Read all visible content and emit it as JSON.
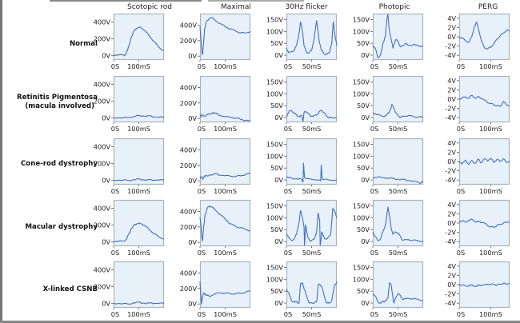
{
  "figure": {
    "columns": [
      "Scotopic rod",
      "Maximal",
      "30Hz flicker",
      "Photopic",
      "PERG"
    ],
    "rows": [
      {
        "label_lines": [
          "Normal"
        ]
      },
      {
        "label_lines": [
          "Retinitis Pigmentosa",
          "(macula involved)"
        ]
      },
      {
        "label_lines": [
          "Cone-rod dystrophy"
        ]
      },
      {
        "label_lines": [
          "Macular dystrophy"
        ]
      },
      {
        "label_lines": [
          "X-linked CSNB"
        ]
      }
    ],
    "colors": {
      "trace": "#3f72bf",
      "panel_bg": "#e8f0f9",
      "panel_border": "#a9b4bf"
    }
  },
  "chart_data": {
    "type": "line",
    "title": "",
    "grid": false,
    "axes": {
      "Scotopic rod": {
        "xlim": [
          0,
          200
        ],
        "ylim": [
          -50,
          500
        ],
        "xticks": [
          0,
          100
        ],
        "xtick_labels": [
          "0S",
          "100mS"
        ],
        "yticks": [
          0,
          200,
          400
        ],
        "ytick_labels": [
          "0V",
          "200V",
          "400V"
        ]
      },
      "Maximal": {
        "xlim": [
          0,
          200
        ],
        "ylim": [
          -50,
          550
        ],
        "xticks": [
          0,
          100
        ],
        "xtick_labels": [
          "0S",
          "100mS"
        ],
        "yticks": [
          0,
          200,
          400
        ],
        "ytick_labels": [
          "0V",
          "200V",
          "400V"
        ]
      },
      "30Hz flicker": {
        "xlim": [
          0,
          100
        ],
        "ylim": [
          -20,
          175
        ],
        "xticks": [
          0,
          50
        ],
        "xtick_labels": [
          "0S",
          "50mS"
        ],
        "yticks": [
          0,
          50,
          100,
          150
        ],
        "ytick_labels": [
          "0V",
          "50V",
          "100V",
          "150V"
        ]
      },
      "Photopic": {
        "xlim": [
          0,
          100
        ],
        "ylim": [
          -20,
          175
        ],
        "xticks": [
          0,
          50
        ],
        "xtick_labels": [
          "0S",
          "50mS"
        ],
        "yticks": [
          0,
          50,
          100,
          150
        ],
        "ytick_labels": [
          "0V",
          "50V",
          "100V",
          "150V"
        ]
      },
      "PERG": {
        "xlim": [
          0,
          160
        ],
        "ylim": [
          -5,
          5
        ],
        "xticks": [
          0,
          100
        ],
        "xtick_labels": [
          "0S",
          "100mS"
        ],
        "yticks": [
          -4,
          -2,
          0,
          2,
          4
        ],
        "ytick_labels": [
          "-4V",
          "-2V",
          "0V",
          "2V",
          "4V"
        ]
      }
    },
    "series": [
      {
        "row": "Normal",
        "column": "Scotopic rod",
        "x": [
          0,
          20,
          40,
          45,
          55,
          70,
          80,
          90,
          100,
          110,
          120,
          140,
          160,
          180,
          200
        ],
        "y": [
          10,
          10,
          10,
          5,
          60,
          220,
          290,
          325,
          335,
          330,
          305,
          240,
          170,
          100,
          60
        ]
      },
      {
        "row": "Normal",
        "column": "Maximal",
        "x": [
          0,
          3,
          6,
          10,
          14,
          18,
          25,
          35,
          45,
          60,
          80,
          100,
          120,
          140,
          160,
          180,
          200
        ],
        "y": [
          380,
          250,
          100,
          20,
          150,
          350,
          440,
          480,
          500,
          460,
          420,
          380,
          350,
          330,
          300,
          300,
          320
        ]
      },
      {
        "row": "Normal",
        "column": "30Hz flicker",
        "x": [
          0,
          5,
          10,
          15,
          20,
          25,
          28,
          32,
          35,
          40,
          45,
          50,
          55,
          60,
          63,
          65,
          70,
          75,
          80,
          85,
          90,
          93,
          96,
          100
        ],
        "y": [
          30,
          10,
          15,
          20,
          40,
          90,
          140,
          100,
          40,
          10,
          10,
          20,
          70,
          145,
          100,
          60,
          20,
          5,
          5,
          10,
          50,
          140,
          90,
          40
        ]
      },
      {
        "row": "Normal",
        "column": "Photopic",
        "x": [
          0,
          5,
          10,
          15,
          18,
          20,
          25,
          28,
          30,
          32,
          35,
          40,
          45,
          50,
          55,
          60,
          65,
          70,
          80,
          90,
          100
        ],
        "y": [
          40,
          30,
          -10,
          0,
          25,
          50,
          80,
          150,
          175,
          120,
          80,
          30,
          65,
          60,
          35,
          40,
          50,
          42,
          44,
          40,
          38
        ]
      },
      {
        "row": "Normal",
        "column": "PERG",
        "x": [
          0,
          10,
          20,
          30,
          40,
          48,
          55,
          62,
          70,
          80,
          90,
          100,
          110,
          120,
          130,
          140,
          150,
          160
        ],
        "y": [
          0,
          -0.3,
          -0.8,
          -1.2,
          0,
          2.2,
          3.2,
          1.5,
          -0.8,
          -2.4,
          -2.6,
          -2.3,
          -1.5,
          -0.5,
          0.2,
          0.8,
          1.4,
          1.2
        ]
      },
      {
        "row": "Retinitis Pigmentosa (macula involved)",
        "column": "Scotopic rod",
        "x": [
          0,
          40,
          60,
          80,
          100,
          120,
          140,
          160,
          180,
          200
        ],
        "y": [
          5,
          5,
          8,
          20,
          28,
          28,
          25,
          15,
          10,
          8
        ]
      },
      {
        "row": "Retinitis Pigmentosa (macula involved)",
        "column": "Maximal",
        "x": [
          0,
          5,
          10,
          20,
          30,
          50,
          60,
          80,
          100,
          120,
          140,
          160,
          180,
          200
        ],
        "y": [
          60,
          20,
          50,
          30,
          50,
          75,
          70,
          40,
          20,
          15,
          5,
          -10,
          -25,
          -35
        ]
      },
      {
        "row": "Retinitis Pigmentosa (macula involved)",
        "column": "30Hz flicker",
        "x": [
          0,
          5,
          10,
          15,
          20,
          25,
          30,
          33,
          35,
          38,
          42,
          48,
          55,
          60,
          65,
          70,
          75,
          80,
          85,
          90,
          100
        ],
        "y": [
          5,
          25,
          30,
          20,
          10,
          5,
          10,
          -15,
          20,
          25,
          20,
          5,
          8,
          10,
          25,
          30,
          20,
          5,
          0,
          0,
          0
        ]
      },
      {
        "row": "Retinitis Pigmentosa (macula involved)",
        "column": "Photopic",
        "x": [
          0,
          10,
          20,
          25,
          30,
          35,
          38,
          42,
          45,
          50,
          55,
          60,
          70,
          80,
          90,
          100
        ],
        "y": [
          20,
          12,
          5,
          8,
          15,
          35,
          55,
          40,
          20,
          8,
          0,
          5,
          8,
          5,
          2,
          2
        ]
      },
      {
        "row": "Retinitis Pigmentosa (macula involved)",
        "column": "PERG",
        "x": [
          0,
          10,
          20,
          30,
          40,
          50,
          60,
          70,
          80,
          90,
          100,
          110,
          120,
          130,
          140,
          150,
          160
        ],
        "y": [
          0,
          0.3,
          0.5,
          0.2,
          0.8,
          0.3,
          0.5,
          0.2,
          -0.2,
          -0.8,
          -0.9,
          -1.3,
          -1.4,
          -1.6,
          -0.5,
          -1.2,
          -1.4
        ]
      },
      {
        "row": "Cone-rod dystrophy",
        "column": "Scotopic rod",
        "x": [
          0,
          40,
          60,
          80,
          100,
          120,
          140,
          160,
          180,
          200
        ],
        "y": [
          5,
          5,
          0,
          10,
          15,
          10,
          8,
          5,
          5,
          2
        ]
      },
      {
        "row": "Cone-rod dystrophy",
        "column": "Maximal",
        "x": [
          0,
          5,
          10,
          15,
          20,
          40,
          60,
          80,
          100,
          120,
          140,
          160,
          180,
          200
        ],
        "y": [
          40,
          55,
          20,
          50,
          60,
          80,
          90,
          75,
          65,
          60,
          55,
          65,
          80,
          95
        ]
      },
      {
        "row": "Cone-rod dystrophy",
        "column": "30Hz flicker",
        "x": [
          0,
          5,
          10,
          20,
          30,
          33,
          34,
          36,
          40,
          50,
          65,
          68,
          69,
          71,
          75,
          85,
          100
        ],
        "y": [
          15,
          10,
          8,
          5,
          3,
          -8,
          70,
          10,
          5,
          2,
          0,
          -5,
          62,
          5,
          2,
          0,
          0
        ]
      },
      {
        "row": "Cone-rod dystrophy",
        "column": "Photopic",
        "x": [
          0,
          10,
          20,
          30,
          40,
          50,
          60,
          70,
          80,
          90,
          95,
          100
        ],
        "y": [
          10,
          12,
          10,
          8,
          6,
          4,
          2,
          -2,
          -6,
          -10,
          -14,
          -8
        ]
      },
      {
        "row": "Cone-rod dystrophy",
        "column": "PERG",
        "x": [
          0,
          10,
          20,
          30,
          40,
          50,
          60,
          70,
          80,
          90,
          100,
          110,
          120,
          130,
          140,
          150,
          160
        ],
        "y": [
          0,
          -0.5,
          0.3,
          -0.6,
          0.2,
          -0.4,
          0.5,
          -0.3,
          0.6,
          0.1,
          0.7,
          -0.2,
          0.5,
          0,
          0.6,
          -0.2,
          0.1
        ]
      },
      {
        "row": "Macular dystrophy",
        "column": "Scotopic rod",
        "x": [
          0,
          20,
          40,
          50,
          60,
          70,
          80,
          90,
          100,
          110,
          120,
          140,
          160,
          180,
          200
        ],
        "y": [
          10,
          10,
          12,
          30,
          90,
          160,
          195,
          215,
          220,
          215,
          200,
          150,
          100,
          60,
          40
        ]
      },
      {
        "row": "Macular dystrophy",
        "column": "Maximal",
        "x": [
          0,
          3,
          6,
          10,
          14,
          20,
          30,
          40,
          50,
          60,
          80,
          100,
          120,
          140,
          160,
          180,
          200
        ],
        "y": [
          330,
          250,
          100,
          20,
          180,
          360,
          450,
          470,
          450,
          420,
          360,
          300,
          240,
          210,
          190,
          170,
          150
        ]
      },
      {
        "row": "Macular dystrophy",
        "column": "30Hz flicker",
        "x": [
          0,
          5,
          10,
          15,
          20,
          25,
          28,
          32,
          35,
          36,
          38,
          42,
          48,
          55,
          60,
          63,
          66,
          67,
          70,
          75,
          80,
          88,
          92,
          95,
          100
        ],
        "y": [
          35,
          15,
          5,
          10,
          30,
          80,
          130,
          100,
          60,
          -20,
          70,
          20,
          0,
          10,
          40,
          120,
          90,
          -20,
          40,
          15,
          10,
          30,
          140,
          130,
          100
        ]
      },
      {
        "row": "Macular dystrophy",
        "column": "Photopic",
        "x": [
          0,
          5,
          10,
          15,
          20,
          25,
          28,
          30,
          33,
          36,
          40,
          45,
          50,
          55,
          60,
          70,
          80,
          90,
          100
        ],
        "y": [
          40,
          20,
          5,
          10,
          40,
          70,
          110,
          145,
          110,
          60,
          30,
          40,
          35,
          20,
          5,
          8,
          5,
          3,
          2
        ]
      },
      {
        "row": "Macular dystrophy",
        "column": "PERG",
        "x": [
          0,
          10,
          20,
          30,
          40,
          50,
          60,
          70,
          80,
          90,
          100,
          110,
          120,
          130,
          140,
          150,
          160
        ],
        "y": [
          0.3,
          0.5,
          0.2,
          0.6,
          0.8,
          0.4,
          0.3,
          0.2,
          0,
          -0.6,
          -0.8,
          -1,
          -0.5,
          -0.3,
          0,
          0.2,
          0.3
        ]
      },
      {
        "row": "X-linked CSNB",
        "column": "Scotopic rod",
        "x": [
          0,
          40,
          60,
          80,
          100,
          120,
          140,
          160,
          180,
          200
        ],
        "y": [
          5,
          0,
          -5,
          10,
          15,
          8,
          5,
          5,
          2,
          0
        ]
      },
      {
        "row": "X-linked CSNB",
        "column": "Maximal",
        "x": [
          0,
          3,
          6,
          10,
          15,
          20,
          30,
          40,
          60,
          80,
          100,
          120,
          140,
          160,
          180,
          200
        ],
        "y": [
          290,
          120,
          0,
          100,
          140,
          130,
          110,
          100,
          130,
          140,
          140,
          130,
          130,
          140,
          150,
          170
        ]
      },
      {
        "row": "X-linked CSNB",
        "column": "30Hz flicker",
        "x": [
          0,
          5,
          10,
          15,
          20,
          25,
          28,
          32,
          35,
          40,
          45,
          50,
          55,
          60,
          63,
          66,
          70,
          75,
          80,
          85,
          90,
          95,
          100
        ],
        "y": [
          60,
          40,
          10,
          5,
          5,
          0,
          80,
          85,
          60,
          30,
          0,
          0,
          0,
          5,
          75,
          80,
          70,
          30,
          0,
          0,
          10,
          70,
          90
        ]
      },
      {
        "row": "X-linked CSNB",
        "column": "Photopic",
        "x": [
          0,
          5,
          10,
          15,
          20,
          25,
          30,
          33,
          36,
          40,
          42,
          45,
          50,
          55,
          60,
          70,
          80,
          90,
          100
        ],
        "y": [
          40,
          30,
          5,
          0,
          5,
          10,
          20,
          85,
          80,
          20,
          0,
          20,
          40,
          30,
          15,
          20,
          18,
          15,
          12
        ]
      },
      {
        "row": "X-linked CSNB",
        "column": "PERG",
        "x": [
          0,
          10,
          20,
          30,
          40,
          50,
          60,
          70,
          80,
          90,
          100,
          110,
          120,
          130,
          140,
          150,
          160
        ],
        "y": [
          0,
          -0.1,
          -0.2,
          -0.3,
          -0.1,
          -0.3,
          -0.2,
          -0.1,
          -0.1,
          0,
          0.1,
          0,
          -0.1,
          0.1,
          0.3,
          0.1,
          0.4
        ]
      }
    ]
  }
}
